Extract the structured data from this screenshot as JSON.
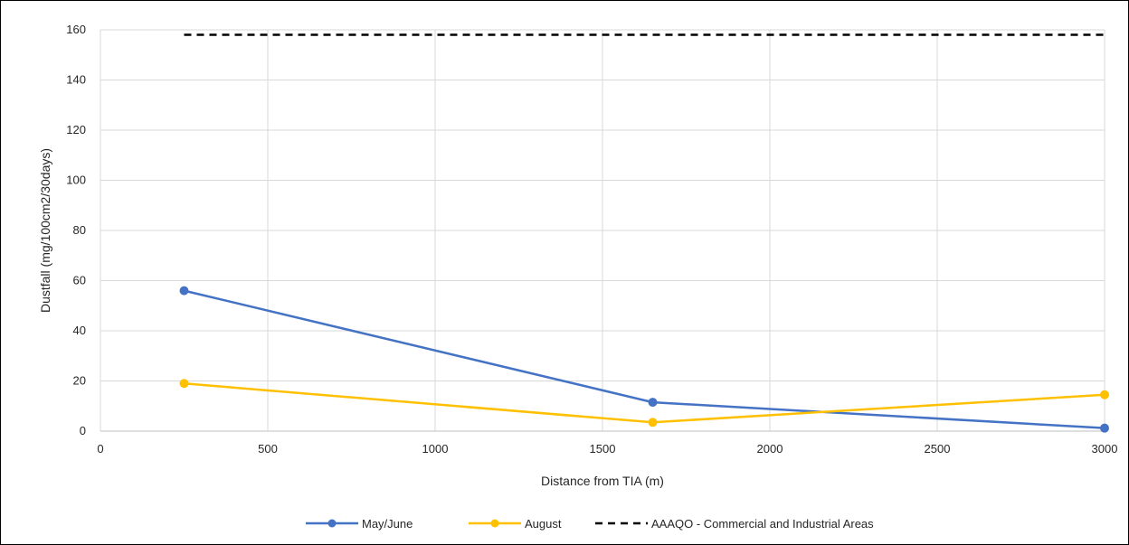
{
  "chart_data": {
    "type": "line",
    "title": "",
    "xlabel": "Distance from TIA (m)",
    "ylabel": "Dustfall (mg/100cm2/30days)",
    "xlim": [
      0,
      3000
    ],
    "ylim": [
      0,
      160
    ],
    "xticks": [
      0,
      500,
      1000,
      1500,
      2000,
      2500,
      3000
    ],
    "yticks": [
      0,
      20,
      40,
      60,
      80,
      100,
      120,
      140,
      160
    ],
    "grid": true,
    "legend_position": "bottom",
    "series": [
      {
        "name": "May/June",
        "color": "#4472c4",
        "marker": "circle",
        "dash": "solid",
        "points": [
          [
            250,
            56
          ],
          [
            1650,
            11.5
          ],
          [
            3000,
            1.2
          ]
        ]
      },
      {
        "name": "August",
        "color": "#ffc000",
        "marker": "circle",
        "dash": "solid",
        "points": [
          [
            250,
            19
          ],
          [
            1650,
            3.5
          ],
          [
            3000,
            14.5
          ]
        ]
      },
      {
        "name": "AAAQO - Commercial and Industrial Areas",
        "color": "#000000",
        "marker": "none",
        "dash": "dashed",
        "points": [
          [
            250,
            158
          ],
          [
            3000,
            158
          ]
        ]
      }
    ]
  }
}
